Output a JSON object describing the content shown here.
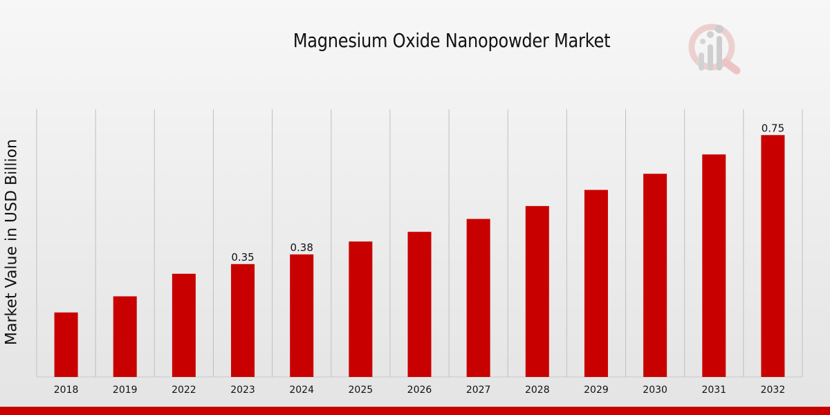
{
  "colors": {
    "bar": "#c80000",
    "grid": "#bfbfbf",
    "axis": "#c8c8c8",
    "accent_strip": "#c80000",
    "logo": "#e8c4c4"
  },
  "logo_icon": "magnifier-bar-chart-icon",
  "chart_data": {
    "type": "bar",
    "title": "Magnesium Oxide Nanopowder Market",
    "xlabel": "",
    "ylabel": "Market Value in USD Billion",
    "categories": [
      "2018",
      "2019",
      "2022",
      "2023",
      "2024",
      "2025",
      "2026",
      "2027",
      "2028",
      "2029",
      "2030",
      "2031",
      "2032"
    ],
    "values": [
      0.2,
      0.25,
      0.32,
      0.35,
      0.38,
      0.42,
      0.45,
      0.49,
      0.53,
      0.58,
      0.63,
      0.69,
      0.75
    ],
    "data_labels": [
      {
        "category": "2023",
        "text": "0.35"
      },
      {
        "category": "2024",
        "text": "0.38"
      },
      {
        "category": "2032",
        "text": "0.75"
      }
    ],
    "ylim": [
      0,
      0.83
    ],
    "grid": "vertical",
    "legend": "none"
  }
}
